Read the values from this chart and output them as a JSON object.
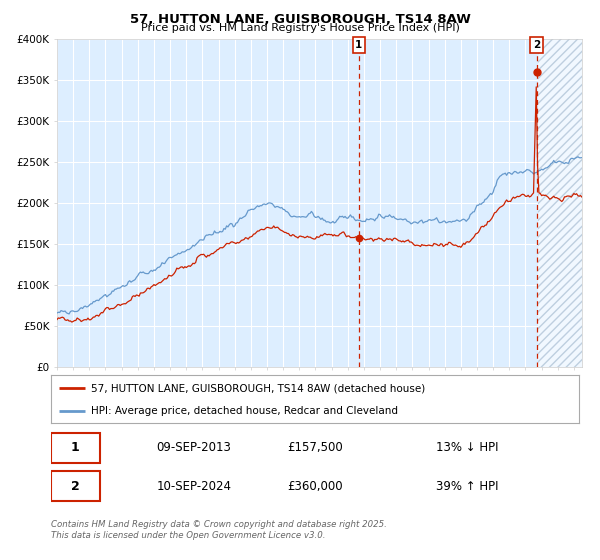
{
  "title1": "57, HUTTON LANE, GUISBOROUGH, TS14 8AW",
  "title2": "Price paid vs. HM Land Registry's House Price Index (HPI)",
  "legend1": "57, HUTTON LANE, GUISBOROUGH, TS14 8AW (detached house)",
  "legend2": "HPI: Average price, detached house, Redcar and Cleveland",
  "marker1_date": "09-SEP-2013",
  "marker1_price": "£157,500",
  "marker1_hpi": "13% ↓ HPI",
  "marker2_date": "10-SEP-2024",
  "marker2_price": "£360,000",
  "marker2_hpi": "39% ↑ HPI",
  "footer": "Contains HM Land Registry data © Crown copyright and database right 2025.\nThis data is licensed under the Open Government Licence v3.0.",
  "hpi_color": "#6699cc",
  "price_color": "#cc2200",
  "fig_bg": "#ffffff",
  "plot_bg": "#ddeeff",
  "hatch_color": "#aabbcc",
  "marker1_x_year": 2013.69,
  "marker2_x_year": 2024.69,
  "ylim": [
    0,
    400000
  ],
  "xlim_start": 1995.0,
  "xlim_end": 2027.5
}
